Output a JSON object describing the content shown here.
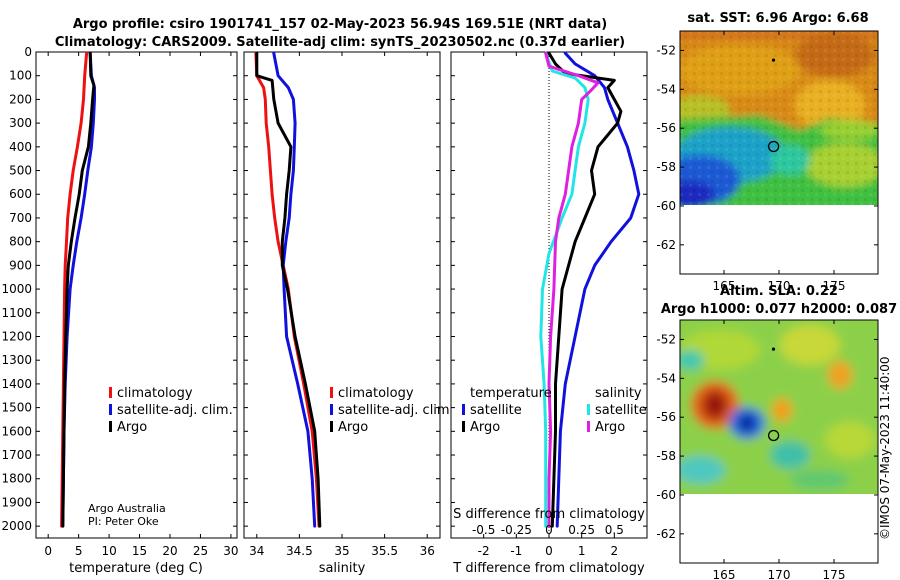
{
  "header": {
    "line1": "Argo profile: csiro 1901741_157 02-May-2023 56.94S 169.51E (NRT data)",
    "line2": "Climatology: CARS2009. Satellite-adj clim: synTS_20230502.nc (0.37d earlier)"
  },
  "credit": {
    "line1": "Argo Australia",
    "line2": "PI: Peter Oke"
  },
  "watermark": "©IMOS 07-May-2023 11:40:00",
  "colors": {
    "climatology": "#ee1111",
    "satellite": "#1111dd",
    "argo": "#000000",
    "cyan": "#22e5e5",
    "magenta": "#e020e0"
  },
  "chart_data": [
    {
      "type": "line",
      "name": "temperature",
      "xlabel": "temperature (deg C)",
      "ylabel": "depth",
      "xlim": [
        -2,
        31
      ],
      "ylim": [
        2050,
        0
      ],
      "xticks": [
        0,
        5,
        10,
        15,
        20,
        25,
        30
      ],
      "xticklabels": [
        "0",
        "5",
        "10",
        "15",
        "20",
        "25",
        "30"
      ],
      "yticks": [
        0,
        100,
        200,
        300,
        400,
        500,
        600,
        700,
        800,
        900,
        1000,
        1100,
        1200,
        1300,
        1400,
        1500,
        1600,
        1700,
        1800,
        1900,
        2000
      ],
      "legend": [
        "climatology",
        "satellite-adj. clim.",
        "Argo"
      ],
      "series": [
        {
          "name": "climatology",
          "color": "#ee1111",
          "points": [
            [
              6.3,
              5
            ],
            [
              6.0,
              100
            ],
            [
              5.8,
              200
            ],
            [
              5.4,
              300
            ],
            [
              4.8,
              400
            ],
            [
              4.1,
              500
            ],
            [
              3.6,
              600
            ],
            [
              3.2,
              700
            ],
            [
              3.0,
              800
            ],
            [
              2.8,
              900
            ],
            [
              2.7,
              1000
            ],
            [
              2.6,
              1200
            ],
            [
              2.5,
              1400
            ],
            [
              2.4,
              1600
            ],
            [
              2.3,
              1800
            ],
            [
              2.2,
              2000
            ]
          ]
        },
        {
          "name": "satellite-adj. clim.",
          "color": "#1111dd",
          "points": [
            [
              6.9,
              5
            ],
            [
              7.1,
              100
            ],
            [
              7.6,
              150
            ],
            [
              7.6,
              200
            ],
            [
              7.4,
              300
            ],
            [
              7.1,
              400
            ],
            [
              6.5,
              500
            ],
            [
              6.0,
              600
            ],
            [
              5.4,
              700
            ],
            [
              4.7,
              800
            ],
            [
              4.1,
              900
            ],
            [
              3.6,
              1000
            ],
            [
              3.1,
              1200
            ],
            [
              2.8,
              1400
            ],
            [
              2.6,
              1600
            ],
            [
              2.5,
              1800
            ],
            [
              2.4,
              2000
            ]
          ]
        },
        {
          "name": "Argo",
          "color": "#000000",
          "points": [
            [
              6.9,
              5
            ],
            [
              7.0,
              100
            ],
            [
              7.5,
              140
            ],
            [
              7.3,
              200
            ],
            [
              7.0,
              300
            ],
            [
              6.6,
              400
            ],
            [
              5.6,
              500
            ],
            [
              5.1,
              600
            ],
            [
              4.4,
              700
            ],
            [
              3.8,
              800
            ],
            [
              3.3,
              900
            ],
            [
              3.1,
              1000
            ],
            [
              2.9,
              1200
            ],
            [
              2.7,
              1400
            ],
            [
              2.6,
              1600
            ],
            [
              2.5,
              1800
            ],
            [
              2.4,
              2000
            ]
          ]
        }
      ]
    },
    {
      "type": "line",
      "name": "salinity",
      "xlabel": "salinity",
      "xlim": [
        33.85,
        36.15
      ],
      "ylim": [
        2050,
        0
      ],
      "xticks": [
        34,
        34.5,
        35,
        35.5,
        36
      ],
      "xticklabels": [
        "34",
        "34.5",
        "35",
        "35.5",
        "36"
      ],
      "legend": [
        "climatology",
        "satellite-adj. clim.",
        "Argo"
      ],
      "series": [
        {
          "name": "climatology",
          "color": "#ee1111",
          "points": [
            [
              33.99,
              5
            ],
            [
              34.0,
              100
            ],
            [
              34.08,
              150
            ],
            [
              34.1,
              200
            ],
            [
              34.11,
              300
            ],
            [
              34.14,
              400
            ],
            [
              34.16,
              500
            ],
            [
              34.18,
              600
            ],
            [
              34.21,
              700
            ],
            [
              34.25,
              800
            ],
            [
              34.31,
              900
            ],
            [
              34.37,
              1000
            ],
            [
              34.44,
              1200
            ],
            [
              34.55,
              1400
            ],
            [
              34.65,
              1600
            ],
            [
              34.7,
              1800
            ],
            [
              34.73,
              2000
            ]
          ]
        },
        {
          "name": "satellite-adj. clim.",
          "color": "#1111dd",
          "points": [
            [
              34.2,
              5
            ],
            [
              34.25,
              100
            ],
            [
              34.37,
              150
            ],
            [
              34.43,
              200
            ],
            [
              34.45,
              300
            ],
            [
              34.44,
              400
            ],
            [
              34.43,
              500
            ],
            [
              34.4,
              600
            ],
            [
              34.38,
              700
            ],
            [
              34.34,
              800
            ],
            [
              34.31,
              900
            ],
            [
              34.32,
              1000
            ],
            [
              34.35,
              1200
            ],
            [
              34.48,
              1400
            ],
            [
              34.6,
              1600
            ],
            [
              34.65,
              1800
            ],
            [
              34.68,
              2000
            ]
          ]
        },
        {
          "name": "Argo",
          "color": "#000000",
          "points": [
            [
              34.0,
              5
            ],
            [
              34.0,
              100
            ],
            [
              34.18,
              120
            ],
            [
              34.2,
              200
            ],
            [
              34.25,
              300
            ],
            [
              34.4,
              400
            ],
            [
              34.38,
              500
            ],
            [
              34.35,
              600
            ],
            [
              34.33,
              700
            ],
            [
              34.3,
              800
            ],
            [
              34.3,
              900
            ],
            [
              34.36,
              1000
            ],
            [
              34.45,
              1200
            ],
            [
              34.57,
              1400
            ],
            [
              34.68,
              1600
            ],
            [
              34.72,
              1800
            ],
            [
              34.74,
              2000
            ]
          ]
        }
      ]
    },
    {
      "type": "line",
      "name": "difference",
      "xlabel": "T difference from climatology",
      "x2label": "S difference from climatology",
      "xlim": [
        -3,
        3
      ],
      "ylim": [
        2050,
        0
      ],
      "xticks": [
        -2,
        -1,
        0,
        1,
        2
      ],
      "xticklabels": [
        "-2",
        "-1",
        "0",
        "1",
        "2"
      ],
      "x2ticklabels": [
        "-0.5",
        "-0.25",
        "0",
        "0.25",
        "0.5"
      ],
      "legend_left_title": "temperature",
      "legend_right_title": "salinity",
      "legend_left": [
        "satellite",
        "Argo"
      ],
      "legend_right": [
        "satellite",
        "Argo"
      ],
      "series": [
        {
          "name": "T satellite",
          "color": "#1111dd",
          "points": [
            [
              0.5,
              5
            ],
            [
              0.8,
              50
            ],
            [
              1.4,
              100
            ],
            [
              1.7,
              150
            ],
            [
              1.8,
              200
            ],
            [
              2.1,
              300
            ],
            [
              2.4,
              400
            ],
            [
              2.6,
              500
            ],
            [
              2.75,
              600
            ],
            [
              2.5,
              700
            ],
            [
              1.9,
              800
            ],
            [
              1.4,
              900
            ],
            [
              1.1,
              1000
            ],
            [
              0.8,
              1200
            ],
            [
              0.5,
              1400
            ],
            [
              0.35,
              1600
            ],
            [
              0.3,
              1800
            ],
            [
              0.25,
              2000
            ]
          ]
        },
        {
          "name": "T Argo",
          "color": "#000000",
          "points": [
            [
              0.0,
              5
            ],
            [
              0.2,
              50
            ],
            [
              0.5,
              90
            ],
            [
              2.0,
              120
            ],
            [
              1.8,
              150
            ],
            [
              2.0,
              200
            ],
            [
              2.2,
              250
            ],
            [
              2.1,
              300
            ],
            [
              1.8,
              350
            ],
            [
              1.5,
              400
            ],
            [
              1.3,
              500
            ],
            [
              1.4,
              600
            ],
            [
              1.1,
              700
            ],
            [
              0.8,
              800
            ],
            [
              0.6,
              900
            ],
            [
              0.4,
              1000
            ],
            [
              0.3,
              1200
            ],
            [
              0.2,
              1400
            ],
            [
              0.2,
              1600
            ],
            [
              0.15,
              1800
            ],
            [
              0.1,
              2000
            ]
          ]
        },
        {
          "name": "S satellite",
          "color": "#22e5e5",
          "points": [
            [
              -0.1,
              5
            ],
            [
              0.1,
              80
            ],
            [
              0.8,
              110
            ],
            [
              1.1,
              150
            ],
            [
              1.2,
              200
            ],
            [
              1.1,
              300
            ],
            [
              0.9,
              400
            ],
            [
              0.8,
              500
            ],
            [
              0.7,
              600
            ],
            [
              0.4,
              700
            ],
            [
              0.0,
              850
            ],
            [
              -0.2,
              1000
            ],
            [
              -0.25,
              1200
            ],
            [
              -0.15,
              1400
            ],
            [
              -0.1,
              1600
            ],
            [
              -0.1,
              1800
            ],
            [
              -0.1,
              2000
            ]
          ]
        },
        {
          "name": "S Argo",
          "color": "#e020e0",
          "points": [
            [
              -0.1,
              5
            ],
            [
              0.0,
              60
            ],
            [
              0.9,
              100
            ],
            [
              1.5,
              130
            ],
            [
              1.3,
              160
            ],
            [
              1.0,
              200
            ],
            [
              0.9,
              300
            ],
            [
              0.7,
              400
            ],
            [
              0.6,
              500
            ],
            [
              0.5,
              600
            ],
            [
              0.3,
              700
            ],
            [
              0.2,
              800
            ],
            [
              0.15,
              1000
            ],
            [
              0.05,
              1200
            ],
            [
              0.0,
              1400
            ],
            [
              0.05,
              1600
            ],
            [
              0.0,
              1800
            ],
            [
              0.0,
              2000
            ]
          ]
        }
      ]
    },
    {
      "type": "heatmap",
      "name": "sst_map",
      "title": "sat. SST: 6.96 Argo: 6.68",
      "xlim": [
        161,
        179
      ],
      "ylim": [
        -63.5,
        -51
      ],
      "xticks": [
        165,
        170,
        175
      ],
      "xticklabels": [
        "165",
        "170",
        "175"
      ],
      "yticks": [
        -52,
        -54,
        -56,
        -58,
        -60,
        -62
      ],
      "yticklabels": [
        "-52",
        "-54",
        "-56",
        "-58",
        "-60",
        "-62"
      ],
      "data_extent_lat": [
        -60,
        -51
      ],
      "argo_position": [
        169.51,
        -56.94
      ],
      "marker_position": [
        169.5,
        -52.5
      ]
    },
    {
      "type": "heatmap",
      "name": "sla_map",
      "title1": "Altim. SLA: 0.22",
      "title2": "Argo h1000: 0.077 h2000: 0.087",
      "xlim": [
        161,
        179
      ],
      "ylim": [
        -63.5,
        -51
      ],
      "xticks": [
        165,
        170,
        175
      ],
      "xticklabels": [
        "165",
        "170",
        "175"
      ],
      "yticks": [
        -52,
        -54,
        -56,
        -58,
        -60,
        -62
      ],
      "yticklabels": [
        "-52",
        "-54",
        "-56",
        "-58",
        "-60",
        "-62"
      ],
      "data_extent_lat": [
        -60,
        -51
      ],
      "argo_position": [
        169.51,
        -56.94
      ],
      "marker_position": [
        169.5,
        -52.5
      ]
    }
  ]
}
